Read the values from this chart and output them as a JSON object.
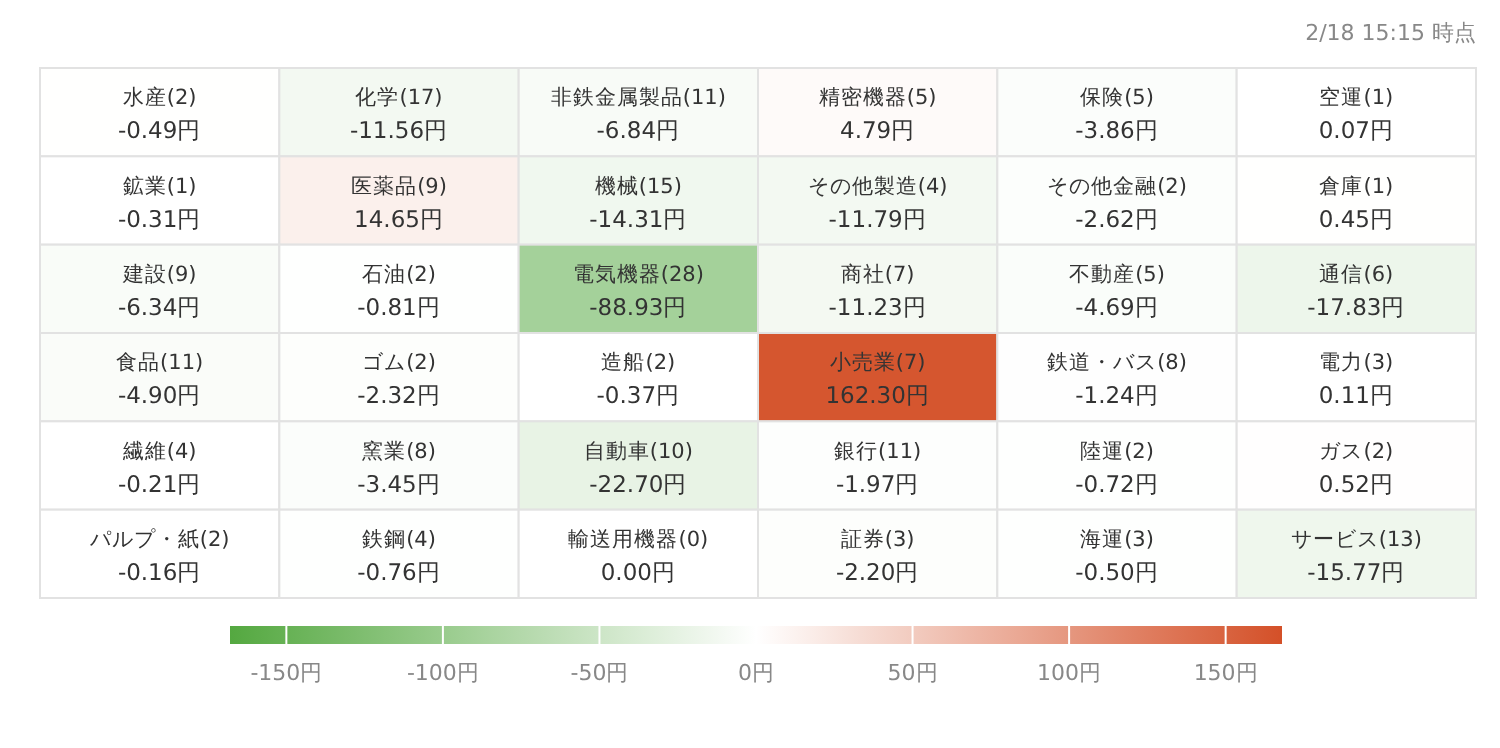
{
  "chart_data": {
    "type": "heatmap",
    "annotations": [
      "2/18 15:15 時点"
    ],
    "categories": [
      null,
      null,
      null,
      null,
      null,
      null
    ],
    "y_categories": [
      null,
      null,
      null,
      null,
      null,
      null
    ],
    "cells": [
      [
        -0.49,
        -11.56,
        -6.84,
        4.79,
        -3.86,
        0.07
      ],
      [
        -0.31,
        14.65,
        -14.31,
        -11.79,
        -2.62,
        0.45
      ],
      [
        -6.34,
        -0.81,
        -88.93,
        -11.23,
        -4.69,
        -17.83
      ],
      [
        -4.9,
        -2.32,
        -0.37,
        162.3,
        -1.24,
        0.11
      ],
      [
        -0.21,
        -3.45,
        -22.7,
        -1.97,
        -0.72,
        0.52
      ],
      [
        -0.16,
        -0.76,
        0.0,
        -2.2,
        -0.5,
        -15.77
      ]
    ],
    "cell_labels": [
      [
        "水産(2)\n-0.49円",
        "化学(17)\n-11.56円",
        "非鉄金属製品(11)\n-6.84円",
        "精密機器(5)\n4.79円",
        "保険(5)\n-3.86円",
        "空運(1)\n0.07円"
      ],
      [
        "鉱業(1)\n-0.31円",
        "医薬品(9)\n14.65円",
        "機械(15)\n-14.31円",
        "その他製造(4)\n-11.79円",
        "その他金融(2)\n-2.62円",
        "倉庫(1)\n0.45円"
      ],
      [
        "建設(9)\n-6.34円",
        "石油(2)\n-0.81円",
        "電気機器(28)\n-88.93円",
        "商社(7)\n-11.23円",
        "不動産(5)\n-4.69円",
        "通信(6)\n-17.83円"
      ],
      [
        "食品(11)\n-4.90円",
        "ゴム(2)\n-2.32円",
        "造船(2)\n-0.37円",
        "小売業(7)\n162.30円",
        "鉄道・バス(8)\n-1.24円",
        "電力(3)\n0.11円"
      ],
      [
        "繊維(4)\n-0.21円",
        "窯業(8)\n-3.45円",
        "自動車(10)\n-22.70円",
        "銀行(11)\n-1.97円",
        "陸運(2)\n-0.72円",
        "ガス(2)\n0.52円"
      ],
      [
        "パルプ・紙(2)\n-0.16円",
        "鉄鋼(4)\n-0.76円",
        "輸送用機器(0)\n0.00円",
        "証券(3)\n-2.20円",
        "海運(3)\n-0.50円",
        "サービス(13)\n-15.77円"
      ]
    ],
    "clim": [
      -168,
      168
    ],
    "cticks": [
      {
        "value": -150,
        "label": "-150円"
      },
      {
        "value": -100,
        "label": "-100円"
      },
      {
        "value": -50,
        "label": "-50円"
      },
      {
        "value": 0,
        "label": "0円"
      },
      {
        "value": 50,
        "label": "50円"
      },
      {
        "value": 100,
        "label": "100円"
      },
      {
        "value": 150,
        "label": "150円"
      }
    ]
  }
}
